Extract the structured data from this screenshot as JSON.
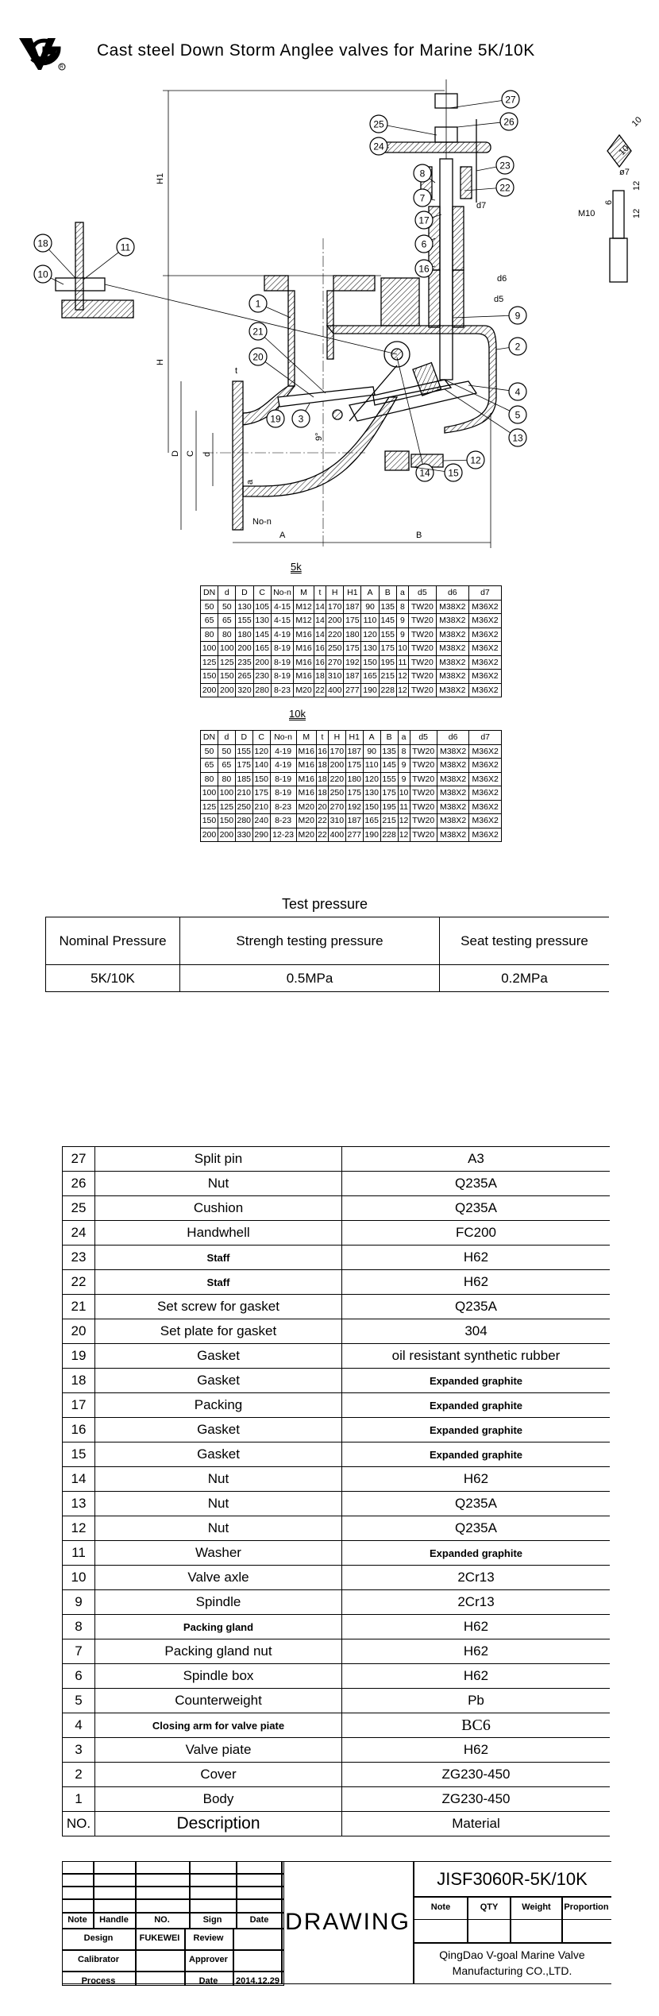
{
  "header": {
    "logo_text": "VG",
    "title": "Cast steel Down Storm Anglee valves for Marine 5K/10K"
  },
  "drawing": {
    "callouts": [
      "1",
      "2",
      "3",
      "4",
      "5",
      "6",
      "7",
      "8",
      "9",
      "10",
      "11",
      "12",
      "13",
      "14",
      "15",
      "16",
      "17",
      "18",
      "19",
      "20",
      "21",
      "22",
      "23",
      "24",
      "25",
      "26",
      "27"
    ],
    "dimension_labels": {
      "H1": "H1",
      "H": "H",
      "D": "D",
      "C": "C",
      "d": "d",
      "a": "a",
      "t": "t",
      "No_n": "No-n",
      "A": "A",
      "B": "B",
      "d5": "d5",
      "d6": "d6",
      "d7": "d7",
      "angle": "9°",
      "M10": "M10",
      "phi7": "ø7",
      "six": "6",
      "twelve_a": "12",
      "twelve_b": "12",
      "ten_a": "10",
      "ten_b": "10"
    }
  },
  "table_5k": {
    "caption": "5k",
    "headers": [
      "DN",
      "d",
      "D",
      "C",
      "No-n",
      "M",
      "t",
      "H",
      "H1",
      "A",
      "B",
      "a",
      "d5",
      "d6",
      "d7"
    ],
    "rows": [
      [
        "50",
        "50",
        "130",
        "105",
        "4-15",
        "M12",
        "14",
        "170",
        "187",
        "90",
        "135",
        "8",
        "TW20",
        "M38X2",
        "M36X2"
      ],
      [
        "65",
        "65",
        "155",
        "130",
        "4-15",
        "M12",
        "14",
        "200",
        "175",
        "110",
        "145",
        "9",
        "TW20",
        "M38X2",
        "M36X2"
      ],
      [
        "80",
        "80",
        "180",
        "145",
        "4-19",
        "M16",
        "14",
        "220",
        "180",
        "120",
        "155",
        "9",
        "TW20",
        "M38X2",
        "M36X2"
      ],
      [
        "100",
        "100",
        "200",
        "165",
        "8-19",
        "M16",
        "16",
        "250",
        "175",
        "130",
        "175",
        "10",
        "TW20",
        "M38X2",
        "M36X2"
      ],
      [
        "125",
        "125",
        "235",
        "200",
        "8-19",
        "M16",
        "16",
        "270",
        "192",
        "150",
        "195",
        "11",
        "TW20",
        "M38X2",
        "M36X2"
      ],
      [
        "150",
        "150",
        "265",
        "230",
        "8-19",
        "M16",
        "18",
        "310",
        "187",
        "165",
        "215",
        "12",
        "TW20",
        "M38X2",
        "M36X2"
      ],
      [
        "200",
        "200",
        "320",
        "280",
        "8-23",
        "M20",
        "22",
        "400",
        "277",
        "190",
        "228",
        "12",
        "TW20",
        "M38X2",
        "M36X2"
      ]
    ]
  },
  "table_10k": {
    "caption": "10k",
    "headers": [
      "DN",
      "d",
      "D",
      "C",
      "No-n",
      "M",
      "t",
      "H",
      "H1",
      "A",
      "B",
      "a",
      "d5",
      "d6",
      "d7"
    ],
    "rows": [
      [
        "50",
        "50",
        "155",
        "120",
        "4-19",
        "M16",
        "16",
        "170",
        "187",
        "90",
        "135",
        "8",
        "TW20",
        "M38X2",
        "M36X2"
      ],
      [
        "65",
        "65",
        "175",
        "140",
        "4-19",
        "M16",
        "18",
        "200",
        "175",
        "110",
        "145",
        "9",
        "TW20",
        "M38X2",
        "M36X2"
      ],
      [
        "80",
        "80",
        "185",
        "150",
        "8-19",
        "M16",
        "18",
        "220",
        "180",
        "120",
        "155",
        "9",
        "TW20",
        "M38X2",
        "M36X2"
      ],
      [
        "100",
        "100",
        "210",
        "175",
        "8-19",
        "M16",
        "18",
        "250",
        "175",
        "130",
        "175",
        "10",
        "TW20",
        "M38X2",
        "M36X2"
      ],
      [
        "125",
        "125",
        "250",
        "210",
        "8-23",
        "M20",
        "20",
        "270",
        "192",
        "150",
        "195",
        "11",
        "TW20",
        "M38X2",
        "M36X2"
      ],
      [
        "150",
        "150",
        "280",
        "240",
        "8-23",
        "M20",
        "22",
        "310",
        "187",
        "165",
        "215",
        "12",
        "TW20",
        "M38X2",
        "M36X2"
      ],
      [
        "200",
        "200",
        "330",
        "290",
        "12-23",
        "M20",
        "22",
        "400",
        "277",
        "190",
        "228",
        "12",
        "TW20",
        "M38X2",
        "M36X2"
      ]
    ]
  },
  "test_pressure": {
    "caption": "Test pressure",
    "headers": [
      "Nominal Pressure",
      "Strengh testing pressure",
      "Seat testing pressure"
    ],
    "row": [
      "5K/10K",
      "0.5MPa",
      "0.2MPa"
    ]
  },
  "parts": {
    "rows": [
      [
        "27",
        "Split pin",
        "A3"
      ],
      [
        "26",
        "Nut",
        "Q235A"
      ],
      [
        "25",
        "Cushion",
        "Q235A"
      ],
      [
        "24",
        "Handwhell",
        "FC200"
      ],
      [
        "23",
        "Staff",
        "H62"
      ],
      [
        "22",
        "Staff",
        "H62"
      ],
      [
        "21",
        "Set screw for gasket",
        "Q235A"
      ],
      [
        "20",
        "Set plate for gasket",
        "304"
      ],
      [
        "19",
        "Gasket",
        "oil resistant synthetic rubber"
      ],
      [
        "18",
        "Gasket",
        "Expanded graphite"
      ],
      [
        "17",
        "Packing",
        "Expanded graphite"
      ],
      [
        "16",
        "Gasket",
        "Expanded graphite"
      ],
      [
        "15",
        "Gasket",
        "Expanded graphite"
      ],
      [
        "14",
        "Nut",
        "H62"
      ],
      [
        "13",
        "Nut",
        "Q235A"
      ],
      [
        "12",
        "Nut",
        "Q235A"
      ],
      [
        "11",
        "Washer",
        "Expanded graphite"
      ],
      [
        "10",
        "Valve axle",
        "2Cr13"
      ],
      [
        "9",
        "Spindle",
        "2Cr13"
      ],
      [
        "8",
        "Packing gland",
        "H62"
      ],
      [
        "7",
        "Packing gland nut",
        "H62"
      ],
      [
        "6",
        "Spindle box",
        "H62"
      ],
      [
        "5",
        "Counterweight",
        "Pb"
      ],
      [
        "4",
        "Closing arm for valve piate",
        "BC6"
      ],
      [
        "3",
        "Valve piate",
        "H62"
      ],
      [
        "2",
        "Cover",
        "ZG230-450"
      ],
      [
        "1",
        "Body",
        "ZG230-450"
      ]
    ],
    "header": [
      "NO.",
      "Description",
      "Material"
    ]
  },
  "title_block": {
    "sign_header": [
      "Note",
      "Handle",
      "NO.",
      "Sign",
      "Date"
    ],
    "design_label": "Design",
    "designer": "FUKEWEI",
    "review_label": "Review",
    "calibrator_label": "Calibrator",
    "approver_label": "Approver",
    "process_label": "Process",
    "date_label": "Date",
    "date": "2014.12.29",
    "drawing_label": "DRAWING",
    "drawing_no": "JISF3060R-5K/10K",
    "info_header": [
      "Note",
      "QTY",
      "Weight",
      "Proportion"
    ],
    "company_line1": "QingDao V-goal Marine Valve",
    "company_line2": "Manufacturing CO.,LTD."
  }
}
